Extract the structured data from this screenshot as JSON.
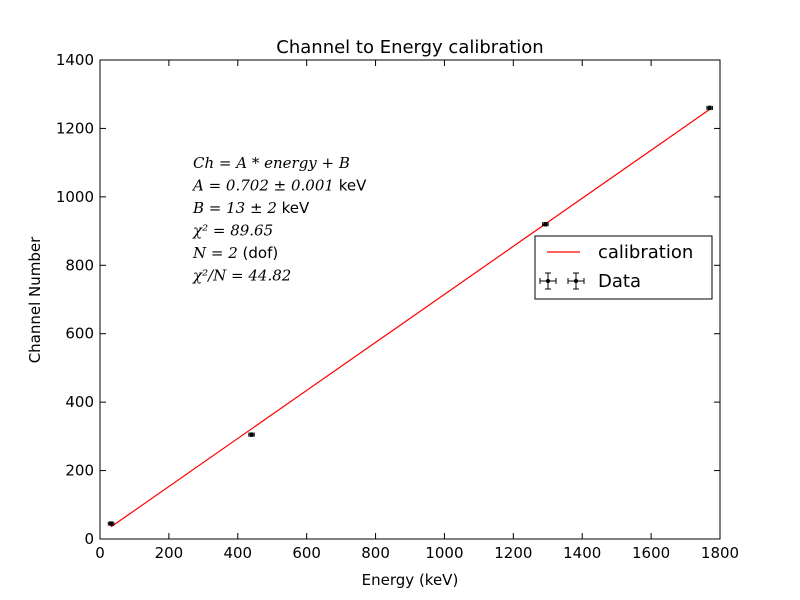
{
  "chart_data": {
    "type": "scatter",
    "title": "Channel to Energy calibration",
    "xlabel": "Energy (keV)",
    "ylabel": "Channel Number",
    "xlim": [
      0,
      1800
    ],
    "ylim": [
      0,
      1400
    ],
    "xticks": [
      0,
      200,
      400,
      600,
      800,
      1000,
      1200,
      1400,
      1600,
      1800
    ],
    "yticks": [
      0,
      200,
      400,
      600,
      800,
      1000,
      1200,
      1400
    ],
    "grid": false,
    "legend_position": "right",
    "series": [
      {
        "name": "calibration",
        "kind": "line",
        "color": "#ff0000",
        "x": [
          32,
          1770
        ],
        "y": [
          35.5,
          1255.6
        ]
      },
      {
        "name": "Data",
        "kind": "errorbar",
        "color": "#000000",
        "x": [
          32,
          440,
          1293,
          1770
        ],
        "y": [
          45,
          305,
          920,
          1260
        ],
        "x_err": [
          8,
          8,
          8,
          8
        ],
        "y_err": [
          5,
          5,
          5,
          5
        ]
      }
    ],
    "annotation": [
      {
        "math": "Ch = A * energy + B",
        "unit": ""
      },
      {
        "math": "A = 0.702 ± 0.001",
        "unit": " keV"
      },
      {
        "math": "B = 13 ± 2",
        "unit": " keV"
      },
      {
        "math": "χ² = 89.65",
        "unit": ""
      },
      {
        "math": "N = 2",
        "unit": " (dof)"
      },
      {
        "math": "χ²/N = 44.82",
        "unit": ""
      }
    ]
  }
}
